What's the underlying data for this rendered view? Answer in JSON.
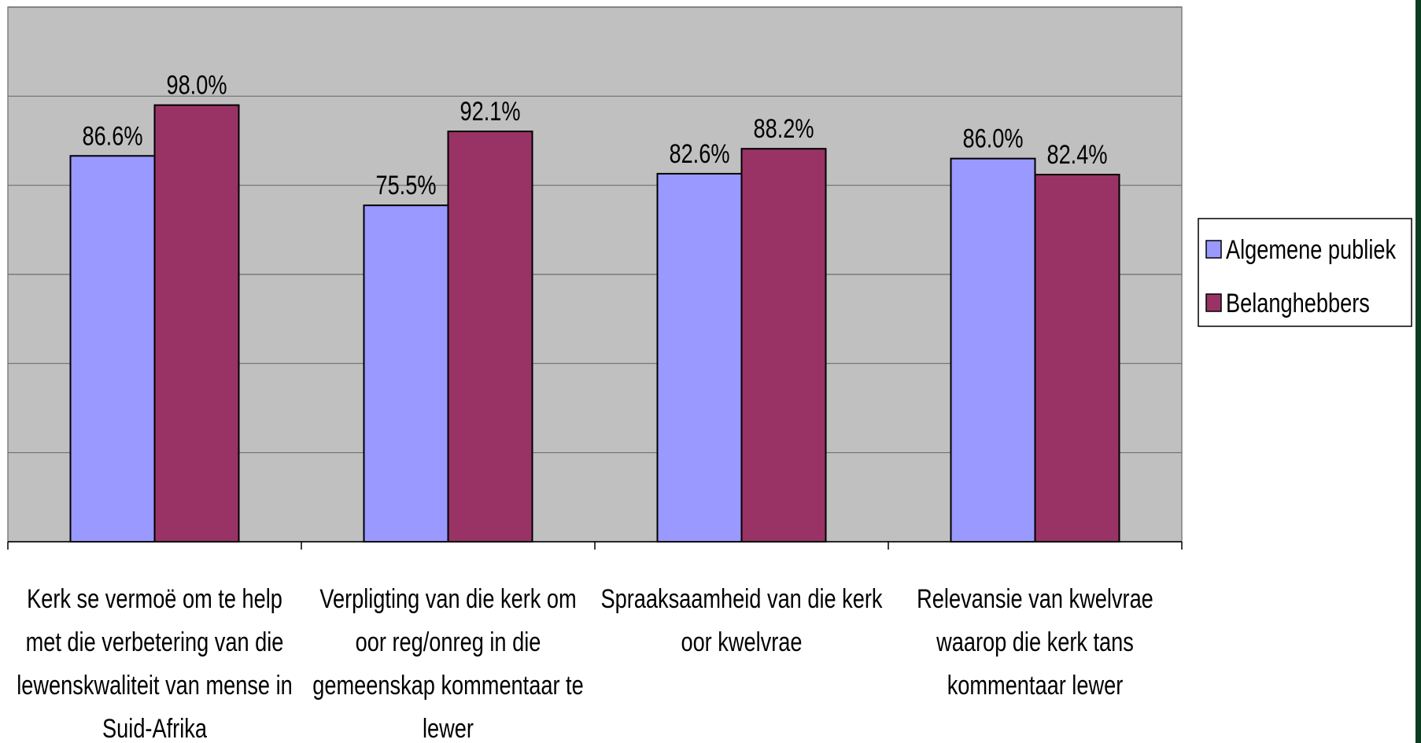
{
  "chart_data": {
    "type": "bar",
    "categories": [
      "Kerk se vermoë om te help met die verbetering van die lewenskwaliteit van mense in Suid-Afrika",
      "Verpligting van die kerk om oor reg/onreg in die gemeenskap kommentaar te lewer",
      "Spraaksaamheid van die kerk oor kwelvrae",
      "Relevansie van kwelvrae waarop die kerk tans kommentaar lewer"
    ],
    "series": [
      {
        "name": "Algemene publiek",
        "color": "#9999ff",
        "values": [
          86.6,
          75.5,
          82.6,
          86.0
        ],
        "value_labels": [
          "86.6%",
          "75.5%",
          "82.6%",
          "86.0%"
        ]
      },
      {
        "name": "Belanghebbers",
        "color": "#993366",
        "values": [
          98.0,
          92.1,
          88.2,
          82.4
        ],
        "value_labels": [
          "98.0%",
          "92.1%",
          "88.2%",
          "82.4%"
        ]
      }
    ],
    "ylim": [
      0,
      120
    ],
    "yticks": [
      0,
      20,
      40,
      60,
      80,
      100,
      120
    ],
    "grid": true,
    "legend": "right"
  }
}
